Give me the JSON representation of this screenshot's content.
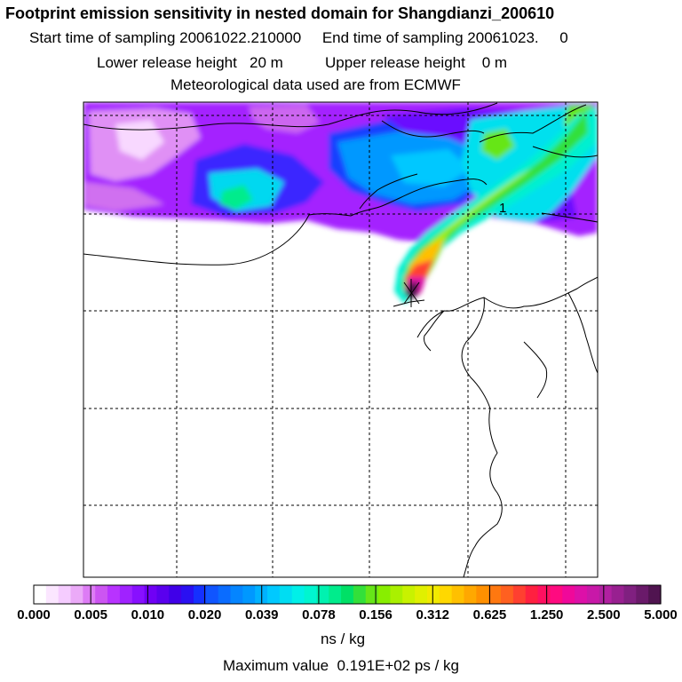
{
  "header": {
    "title": "Footprint emission sensitivity in nested domain for Shangdianzi_200610",
    "line2": "Start time of sampling 20061022.210000     End time of sampling 20061023.     0",
    "line3": "Lower release height   20 m          Upper release height    0 m",
    "line4": "Meteorological data used are from ECMWF"
  },
  "map": {
    "contour_label": "1",
    "background_color": "#ffffff",
    "grid_style": "dashed black lines"
  },
  "colorbar": {
    "tick_labels": [
      "0.000",
      "0.005",
      "0.010",
      "0.020",
      "0.039",
      "0.078",
      "0.156",
      "0.312",
      "0.625",
      "1.250",
      "2.500",
      "5.000"
    ],
    "colors": [
      "#ffffff",
      "#fbe6ff",
      "#f5ccff",
      "#ebaaf8",
      "#dd7cf5",
      "#cc55f2",
      "#b833ff",
      "#a022ff",
      "#8810ff",
      "#7000f5",
      "#5a00ee",
      "#4000e8",
      "#2a10f2",
      "#1530ff",
      "#1055ff",
      "#0a6cff",
      "#0585ff",
      "#0098ff",
      "#00b2ff",
      "#00c9ff",
      "#00ddf2",
      "#00f0e8",
      "#00f5d0",
      "#00f2b0",
      "#00ec8c",
      "#00e066",
      "#33e03a",
      "#66e618",
      "#88ee00",
      "#aaf000",
      "#c8f200",
      "#e0f000",
      "#f2ea00",
      "#ffd800",
      "#ffc000",
      "#ffa800",
      "#ff9000",
      "#ff7810",
      "#ff6020",
      "#ff4030",
      "#ff2040",
      "#ff1060",
      "#ff0a80",
      "#f0089a",
      "#dd10a8",
      "#c818a8",
      "#b020a0",
      "#982090",
      "#802080",
      "#6a1a6a",
      "#501450"
    ],
    "unit": "ns / kg",
    "max_value_text": "Maximum value  0.191E+02 ps / kg"
  }
}
